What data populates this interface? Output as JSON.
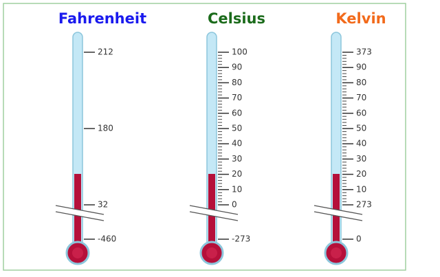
{
  "thermometers": [
    {
      "title": "Fahrenheit",
      "color": "#1a1aee",
      "labels": [
        212,
        180,
        32,
        -460
      ]
    },
    {
      "title": "Celsius",
      "color": "#1b6b1b",
      "labels": [
        100,
        90,
        80,
        70,
        60,
        50,
        40,
        30,
        20,
        10,
        0,
        -273
      ]
    },
    {
      "title": "Kelvin",
      "color": "#f26a1b",
      "labels": [
        373,
        90,
        80,
        70,
        60,
        50,
        40,
        30,
        20,
        10,
        273,
        0
      ]
    }
  ]
}
